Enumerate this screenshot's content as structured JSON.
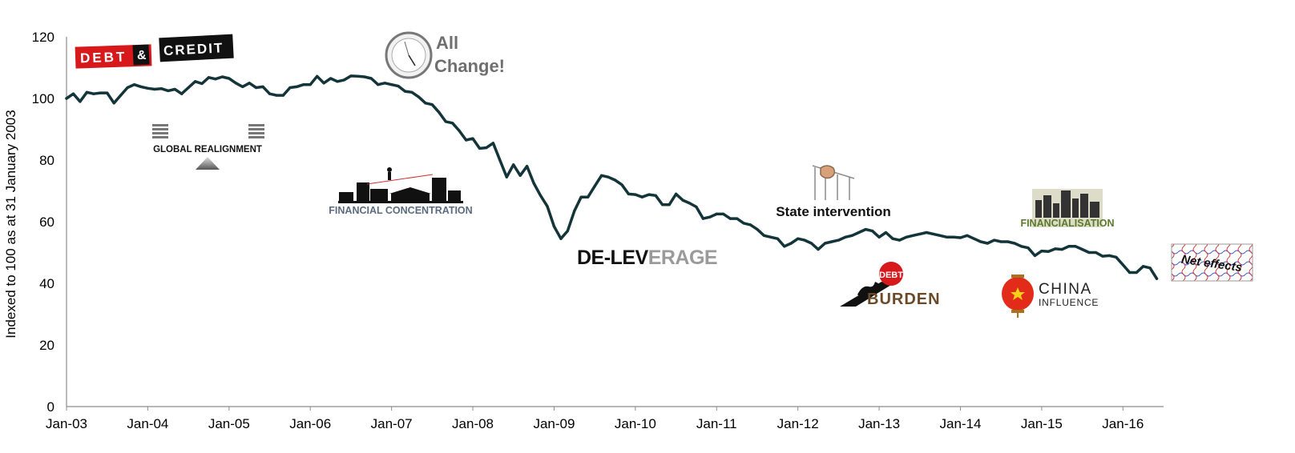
{
  "chart_data": {
    "type": "line",
    "title": "",
    "xlabel": "",
    "ylabel": "Indexed to 100 as at 31 January 2003",
    "ylim": [
      0,
      120
    ],
    "yticks": [
      "0",
      "20",
      "40",
      "60",
      "80",
      "100",
      "120"
    ],
    "xticks": [
      "Jan-03",
      "Jan-04",
      "Jan-05",
      "Jan-06",
      "Jan-07",
      "Jan-08",
      "Jan-09",
      "Jan-10",
      "Jan-11",
      "Jan-12",
      "Jan-13",
      "Jan-14",
      "Jan-15",
      "Jan-16"
    ],
    "xlim": [
      "2003-01",
      "2016-07"
    ],
    "grid": false,
    "legend": "none",
    "series": [
      {
        "color": "#13353a",
        "points": [
          [
            "2003-01",
            100
          ],
          [
            "2003-02",
            101.5
          ],
          [
            "2003-03",
            99
          ],
          [
            "2003-04",
            102
          ],
          [
            "2003-05",
            101.5
          ],
          [
            "2003-06",
            101.8
          ],
          [
            "2003-07",
            101.8
          ],
          [
            "2003-08",
            98.5
          ],
          [
            "2003-09",
            101
          ],
          [
            "2003-10",
            103.5
          ],
          [
            "2003-11",
            104.5
          ],
          [
            "2003-12",
            103.8
          ],
          [
            "2004-01",
            103.3
          ],
          [
            "2004-02",
            103
          ],
          [
            "2004-03",
            103.2
          ],
          [
            "2004-04",
            102.5
          ],
          [
            "2004-05",
            103
          ],
          [
            "2004-06",
            101.5
          ],
          [
            "2004-07",
            103.5
          ],
          [
            "2004-08",
            105.5
          ],
          [
            "2004-09",
            104.8
          ],
          [
            "2004-10",
            106.8
          ],
          [
            "2004-11",
            106.3
          ],
          [
            "2004-12",
            107
          ],
          [
            "2005-01",
            106.5
          ],
          [
            "2005-02",
            105
          ],
          [
            "2005-03",
            103.8
          ],
          [
            "2005-04",
            105
          ],
          [
            "2005-05",
            103.5
          ],
          [
            "2005-06",
            103.8
          ],
          [
            "2005-07",
            101.5
          ],
          [
            "2005-08",
            101
          ],
          [
            "2005-09",
            101
          ],
          [
            "2005-10",
            103.5
          ],
          [
            "2005-11",
            103.8
          ],
          [
            "2005-12",
            104.5
          ],
          [
            "2006-01",
            104.5
          ],
          [
            "2006-02",
            107.2
          ],
          [
            "2006-03",
            105
          ],
          [
            "2006-04",
            106.5
          ],
          [
            "2006-05",
            105.5
          ],
          [
            "2006-06",
            106
          ],
          [
            "2006-07",
            107.3
          ],
          [
            "2006-08",
            107.2
          ],
          [
            "2006-09",
            107
          ],
          [
            "2006-10",
            106.5
          ],
          [
            "2006-11",
            104.5
          ],
          [
            "2006-12",
            105
          ],
          [
            "2007-01",
            104.5
          ],
          [
            "2007-02",
            104
          ],
          [
            "2007-03",
            102.3
          ],
          [
            "2007-04",
            102
          ],
          [
            "2007-05",
            100.5
          ],
          [
            "2007-06",
            98.5
          ],
          [
            "2007-07",
            98
          ],
          [
            "2007-08",
            95.5
          ],
          [
            "2007-09",
            92.5
          ],
          [
            "2007-10",
            92
          ],
          [
            "2007-11",
            89.5
          ],
          [
            "2007-12",
            86.5
          ],
          [
            "2008-01",
            87
          ],
          [
            "2008-02",
            83.8
          ],
          [
            "2008-03",
            84
          ],
          [
            "2008-04",
            85.5
          ],
          [
            "2008-05",
            80
          ],
          [
            "2008-06",
            74.5
          ],
          [
            "2008-07",
            78.5
          ],
          [
            "2008-08",
            75
          ],
          [
            "2008-09",
            78
          ],
          [
            "2008-10",
            72.5
          ],
          [
            "2008-11",
            68.5
          ],
          [
            "2008-12",
            65
          ],
          [
            "2009-01",
            58.5
          ],
          [
            "2009-02",
            54.5
          ],
          [
            "2009-03",
            57
          ],
          [
            "2009-04",
            63.5
          ],
          [
            "2009-05",
            68
          ],
          [
            "2009-06",
            68
          ],
          [
            "2009-07",
            71.5
          ],
          [
            "2009-08",
            75
          ],
          [
            "2009-09",
            74.5
          ],
          [
            "2009-10",
            73.5
          ],
          [
            "2009-11",
            72
          ],
          [
            "2009-12",
            69
          ],
          [
            "2010-01",
            68.8
          ],
          [
            "2010-02",
            68
          ],
          [
            "2010-03",
            68.8
          ],
          [
            "2010-04",
            68.5
          ],
          [
            "2010-05",
            65.5
          ],
          [
            "2010-06",
            65.5
          ],
          [
            "2010-07",
            69
          ],
          [
            "2010-08",
            67
          ],
          [
            "2010-09",
            66
          ],
          [
            "2010-10",
            64.8
          ],
          [
            "2010-11",
            61
          ],
          [
            "2010-12",
            61.5
          ],
          [
            "2011-01",
            62.5
          ],
          [
            "2011-02",
            62.5
          ],
          [
            "2011-03",
            61
          ],
          [
            "2011-04",
            61
          ],
          [
            "2011-05",
            59.5
          ],
          [
            "2011-06",
            59
          ],
          [
            "2011-07",
            57.5
          ],
          [
            "2011-08",
            55.5
          ],
          [
            "2011-09",
            55
          ],
          [
            "2011-10",
            54.5
          ],
          [
            "2011-11",
            52
          ],
          [
            "2011-12",
            53
          ],
          [
            "2012-01",
            54.5
          ],
          [
            "2012-02",
            54
          ],
          [
            "2012-03",
            53
          ],
          [
            "2012-04",
            51
          ],
          [
            "2012-05",
            53
          ],
          [
            "2012-06",
            53.5
          ],
          [
            "2012-07",
            54
          ],
          [
            "2012-08",
            55
          ],
          [
            "2012-09",
            55.5
          ],
          [
            "2012-10",
            56.5
          ],
          [
            "2012-11",
            57.5
          ],
          [
            "2012-12",
            57
          ],
          [
            "2013-01",
            55
          ],
          [
            "2013-02",
            56.5
          ],
          [
            "2013-03",
            54.5
          ],
          [
            "2013-04",
            54
          ],
          [
            "2013-05",
            55
          ],
          [
            "2013-06",
            55.5
          ],
          [
            "2013-07",
            56
          ],
          [
            "2013-08",
            56.5
          ],
          [
            "2013-09",
            56
          ],
          [
            "2013-10",
            55.5
          ],
          [
            "2013-11",
            55
          ],
          [
            "2013-12",
            55
          ],
          [
            "2014-01",
            54.8
          ],
          [
            "2014-02",
            55.5
          ],
          [
            "2014-03",
            54.5
          ],
          [
            "2014-04",
            53.5
          ],
          [
            "2014-05",
            53
          ],
          [
            "2014-06",
            54
          ],
          [
            "2014-07",
            53.5
          ],
          [
            "2014-08",
            53.5
          ],
          [
            "2014-09",
            53
          ],
          [
            "2014-10",
            52
          ],
          [
            "2014-11",
            51.5
          ],
          [
            "2014-12",
            49
          ],
          [
            "2015-01",
            50.5
          ],
          [
            "2015-02",
            50.3
          ],
          [
            "2015-03",
            51.2
          ],
          [
            "2015-04",
            51
          ],
          [
            "2015-05",
            52
          ],
          [
            "2015-06",
            52
          ],
          [
            "2015-07",
            51
          ],
          [
            "2015-08",
            50
          ],
          [
            "2015-09",
            50
          ],
          [
            "2015-10",
            48.8
          ],
          [
            "2015-11",
            49
          ],
          [
            "2015-12",
            48.5
          ],
          [
            "2016-01",
            46
          ],
          [
            "2016-02",
            43.5
          ],
          [
            "2016-03",
            43.5
          ],
          [
            "2016-04",
            45.5
          ],
          [
            "2016-05",
            45
          ],
          [
            "2016-06",
            41.5
          ]
        ]
      }
    ],
    "annotations": [
      {
        "id": "debt-credit",
        "kind": "logo",
        "text_parts": [
          "DEBT",
          "&",
          "CREDIT"
        ]
      },
      {
        "id": "all-change",
        "kind": "logo",
        "text_lines": [
          "All",
          "Change!"
        ]
      },
      {
        "id": "global-realignment",
        "kind": "logo",
        "text": "GLOBAL REALIGNMENT"
      },
      {
        "id": "financial-concentration",
        "kind": "logo",
        "text": "FINANCIAL CONCENTRATION"
      },
      {
        "id": "de-leverage",
        "kind": "logo",
        "text_parts": [
          "DE-LEV",
          "ERAGE"
        ]
      },
      {
        "id": "state-intervention",
        "kind": "logo",
        "text": "State intervention"
      },
      {
        "id": "debt-burden",
        "kind": "logo",
        "text_parts": [
          "DEBT",
          "BURDEN"
        ]
      },
      {
        "id": "china-influence",
        "kind": "logo",
        "text_lines": [
          "CHINA",
          "INFLUENCE"
        ]
      },
      {
        "id": "financialisation",
        "kind": "logo",
        "text": "FINANCIALISATION"
      },
      {
        "id": "net-effects",
        "kind": "logo",
        "text": "Net effects"
      }
    ],
    "colors": {
      "line": "#13353a",
      "axis": "#8c8c8c",
      "debt_red": "#d7191c",
      "financialisation_green": "#5a7a2a",
      "china_red": "#e32b1a"
    }
  }
}
